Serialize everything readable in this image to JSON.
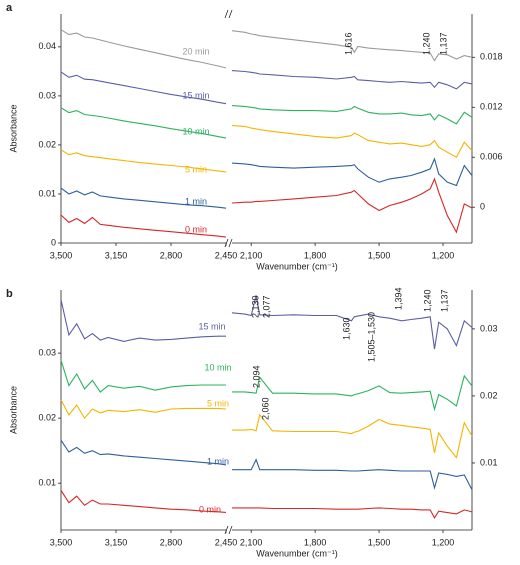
{
  "chart_data": [
    {
      "type": "line",
      "panel": "a",
      "xlabel": "Wavenumber (cm⁻¹)",
      "ylabel": "Absorbance",
      "x": [
        3500,
        3450,
        3400,
        3350,
        3300,
        3250,
        3200,
        3100,
        3000,
        2900,
        2800,
        2700,
        2600,
        2500,
        2450
      ],
      "x2": [
        2190,
        2130,
        2100,
        2077,
        2060,
        2000,
        1900,
        1800,
        1700,
        1630,
        1616,
        1600,
        1550,
        1500,
        1450,
        1394,
        1350,
        1300,
        1260,
        1240,
        1220,
        1180,
        1137,
        1100,
        1064
      ],
      "xlim": [
        3500,
        2450
      ],
      "xticks": [
        {
          "value": 3500,
          "label": "3,500"
        },
        {
          "value": 3150,
          "label": "3,150"
        },
        {
          "value": 2800,
          "label": "2,800"
        },
        {
          "value": 2450,
          "label": "2,450"
        }
      ],
      "x2lim": [
        2190,
        1064
      ],
      "x2ticks": [
        {
          "value": 2100,
          "label": "2,100"
        },
        {
          "value": 1800,
          "label": "1,800"
        },
        {
          "value": 1500,
          "label": "1,500"
        },
        {
          "value": 1200,
          "label": "1,200"
        }
      ],
      "ylim": [
        0,
        0.0467
      ],
      "yticks": [
        0,
        0.01,
        0.02,
        0.03,
        0.04
      ],
      "y2lim": [
        -0.0043,
        0.0232
      ],
      "y2ticks": [
        0,
        0.006,
        0.012,
        0.018
      ],
      "series": [
        {
          "name": "20 min",
          "color": "#9a9a9a",
          "values": [
            0.0435,
            0.0425,
            0.0428,
            0.042,
            0.0418,
            0.0414,
            0.041,
            0.0402,
            0.0395,
            0.0388,
            0.0381,
            0.0374,
            0.0368,
            0.0361,
            0.0357
          ],
          "values2": [
            0.0212,
            0.021,
            0.0208,
            0.0207,
            0.0206,
            0.0204,
            0.0201,
            0.0198,
            0.0195,
            0.0192,
            0.0186,
            0.0193,
            0.0191,
            0.019,
            0.0189,
            0.0188,
            0.0187,
            0.0186,
            0.0185,
            0.0176,
            0.0184,
            0.0183,
            0.0178,
            0.0182,
            0.018
          ]
        },
        {
          "name": "15 min",
          "color": "#5b5ea6",
          "values": [
            0.0349,
            0.0338,
            0.0342,
            0.0334,
            0.0333,
            0.033,
            0.0327,
            0.0321,
            0.0315,
            0.0309,
            0.0303,
            0.0298,
            0.0293,
            0.0287,
            0.0284
          ],
          "values2": [
            0.0164,
            0.0163,
            0.0162,
            0.0161,
            0.016,
            0.0159,
            0.0157,
            0.0156,
            0.0154,
            0.0156,
            0.0157,
            0.0153,
            0.0152,
            0.0151,
            0.015,
            0.0151,
            0.015,
            0.0149,
            0.015,
            0.0144,
            0.015,
            0.0147,
            0.0142,
            0.015,
            0.0148
          ]
        },
        {
          "name": "10 min",
          "color": "#2db35d",
          "values": [
            0.0276,
            0.0266,
            0.027,
            0.0262,
            0.026,
            0.0258,
            0.0255,
            0.0249,
            0.0244,
            0.0239,
            0.0233,
            0.0228,
            0.0223,
            0.0217,
            0.0214
          ],
          "values2": [
            0.0122,
            0.0121,
            0.012,
            0.0119,
            0.0118,
            0.0117,
            0.0116,
            0.0116,
            0.0115,
            0.0118,
            0.0121,
            0.0119,
            0.0114,
            0.0112,
            0.0112,
            0.0113,
            0.0111,
            0.011,
            0.0112,
            0.0105,
            0.0111,
            0.0106,
            0.01,
            0.0114,
            0.0108
          ]
        },
        {
          "name": "5 min",
          "color": "#f4b400",
          "values": [
            0.019,
            0.018,
            0.0184,
            0.0178,
            0.0176,
            0.0174,
            0.0172,
            0.0168,
            0.0164,
            0.0161,
            0.0158,
            0.0155,
            0.0151,
            0.0147,
            0.0145
          ],
          "values2": [
            0.0098,
            0.0097,
            0.0095,
            0.0094,
            0.0093,
            0.0091,
            0.0088,
            0.0085,
            0.0083,
            0.0086,
            0.0089,
            0.0087,
            0.008,
            0.0078,
            0.0076,
            0.0077,
            0.0075,
            0.0073,
            0.0075,
            0.008,
            0.0072,
            0.0066,
            0.006,
            0.0078,
            0.0068
          ]
        },
        {
          "name": "1 min",
          "color": "#2e5f9a",
          "values": [
            0.0112,
            0.01,
            0.0106,
            0.0098,
            0.0104,
            0.0096,
            0.0094,
            0.009,
            0.0087,
            0.0084,
            0.0081,
            0.0078,
            0.0076,
            0.0073,
            0.0071
          ],
          "values2": [
            0.0053,
            0.0052,
            0.0051,
            0.005,
            0.0049,
            0.0048,
            0.0047,
            0.0048,
            0.0049,
            0.005,
            0.0051,
            0.0046,
            0.0036,
            0.003,
            0.0034,
            0.0036,
            0.0038,
            0.0042,
            0.0046,
            0.0058,
            0.004,
            0.003,
            0.0026,
            0.005,
            0.0038
          ]
        },
        {
          "name": "0 min",
          "color": "#d62728",
          "values": [
            0.0057,
            0.0042,
            0.005,
            0.004,
            0.0052,
            0.0038,
            0.0036,
            0.0032,
            0.0029,
            0.0026,
            0.0023,
            0.002,
            0.0017,
            0.0014,
            0.0012
          ],
          "values2": [
            0.0005,
            0.0006,
            0.0006,
            0.0007,
            0.0007,
            0.0008,
            0.001,
            0.0012,
            0.0014,
            0.0018,
            0.002,
            0.0016,
            0.0004,
            -0.0004,
            0.0002,
            0.0006,
            0.001,
            0.0016,
            0.0022,
            0.0034,
            0.0018,
            -0.001,
            -0.003,
            0.0004,
            -0.0001
          ]
        }
      ],
      "annotations": [
        "1,616",
        "1,240",
        "1,137"
      ]
    },
    {
      "type": "line",
      "panel": "b",
      "xlabel": "Wavenumber (cm⁻¹)",
      "ylabel": "Absorbance",
      "x": [
        3500,
        3450,
        3400,
        3350,
        3300,
        3250,
        3200,
        3100,
        3000,
        2900,
        2800,
        2700,
        2600,
        2500,
        2450
      ],
      "x2": [
        2190,
        2130,
        2100,
        2077,
        2060,
        2000,
        1900,
        1800,
        1700,
        1630,
        1616,
        1600,
        1550,
        1500,
        1450,
        1394,
        1350,
        1300,
        1260,
        1240,
        1220,
        1180,
        1137,
        1100,
        1064
      ],
      "xlim": [
        3500,
        2450
      ],
      "xticks": [
        {
          "value": 3500,
          "label": "3,500"
        },
        {
          "value": 3150,
          "label": "3,150"
        },
        {
          "value": 2800,
          "label": "2,800"
        },
        {
          "value": 2450,
          "label": "2,450"
        }
      ],
      "x2lim": [
        2190,
        1064
      ],
      "x2ticks": [
        {
          "value": 2100,
          "label": "2,100"
        },
        {
          "value": 1800,
          "label": "1,800"
        },
        {
          "value": 1500,
          "label": "1,500"
        },
        {
          "value": 1200,
          "label": "1,200"
        }
      ],
      "ylim": [
        0.0028,
        0.0397
      ],
      "yticks": [
        0.01,
        0.02,
        0.03
      ],
      "y2lim": [
        0,
        0.0358
      ],
      "y2ticks": [
        0.01,
        0.02,
        0.03
      ],
      "series": [
        {
          "name": "15 min",
          "color": "#5b5ea6",
          "values": [
            0.0382,
            0.0328,
            0.0345,
            0.0322,
            0.033,
            0.032,
            0.0324,
            0.0318,
            0.0323,
            0.032,
            0.0321,
            0.0323,
            0.0325,
            0.0326,
            0.0326
          ],
          "values2": [
            0.0324,
            0.0322,
            0.032,
            0.035,
            0.0321,
            0.032,
            0.0321,
            0.032,
            0.032,
            0.0312,
            0.0318,
            0.0319,
            0.0322,
            0.0318,
            0.0316,
            0.0312,
            0.0314,
            0.0316,
            0.0318,
            0.027,
            0.031,
            0.03,
            0.0275,
            0.0312,
            0.0302
          ]
        },
        {
          "name": "10 min",
          "color": "#2db35d",
          "values": [
            0.0289,
            0.025,
            0.0268,
            0.0245,
            0.0258,
            0.024,
            0.025,
            0.0246,
            0.0249,
            0.0243,
            0.0248,
            0.025,
            0.0251,
            0.0251,
            0.0251
          ],
          "values2": [
            0.0206,
            0.0206,
            0.0205,
            0.0204,
            0.0228,
            0.0204,
            0.0204,
            0.0203,
            0.0203,
            0.02,
            0.0202,
            0.0203,
            0.0208,
            0.0215,
            0.0205,
            0.0204,
            0.0205,
            0.0206,
            0.0207,
            0.018,
            0.0202,
            0.0195,
            0.0185,
            0.023,
            0.0215
          ]
        },
        {
          "name": "5 min",
          "color": "#f4b400",
          "values": [
            0.0228,
            0.0205,
            0.022,
            0.02,
            0.0214,
            0.0208,
            0.0212,
            0.021,
            0.0213,
            0.0209,
            0.0214,
            0.0215,
            0.0215,
            0.0215,
            0.0214
          ],
          "values2": [
            0.0149,
            0.0149,
            0.015,
            0.0148,
            0.0172,
            0.0148,
            0.0147,
            0.0147,
            0.0147,
            0.0144,
            0.0146,
            0.0147,
            0.0155,
            0.0165,
            0.0158,
            0.0156,
            0.0154,
            0.0152,
            0.015,
            0.0115,
            0.0145,
            0.0125,
            0.0108,
            0.016,
            0.014
          ]
        },
        {
          "name": "1 min",
          "color": "#2e5f9a",
          "values": [
            0.0166,
            0.0148,
            0.0155,
            0.0146,
            0.015,
            0.0144,
            0.0145,
            0.0142,
            0.014,
            0.0138,
            0.0136,
            0.0134,
            0.0132,
            0.013,
            0.0128
          ],
          "values2": [
            0.009,
            0.009,
            0.009,
            0.0105,
            0.009,
            0.009,
            0.009,
            0.0089,
            0.0089,
            0.0088,
            0.0088,
            0.0088,
            0.0089,
            0.009,
            0.0089,
            0.0088,
            0.0088,
            0.0088,
            0.0088,
            0.0063,
            0.0085,
            0.0083,
            0.008,
            0.0082,
            0.006
          ]
        },
        {
          "name": "0 min",
          "color": "#d62728",
          "values": [
            0.0089,
            0.007,
            0.008,
            0.0066,
            0.0074,
            0.0068,
            0.0068,
            0.0066,
            0.0064,
            0.0062,
            0.006,
            0.0059,
            0.0057,
            0.0056,
            0.0055
          ],
          "values2": [
            0.0033,
            0.0033,
            0.0033,
            0.0033,
            0.0033,
            0.0032,
            0.0032,
            0.0032,
            0.0031,
            0.0031,
            0.0031,
            0.0031,
            0.0032,
            0.0033,
            0.0032,
            0.0031,
            0.0031,
            0.003,
            0.003,
            0.0018,
            0.0028,
            0.0026,
            0.0024,
            0.003,
            0.0027
          ]
        }
      ],
      "annotations": [
        "2,130",
        "2,077",
        "1,630",
        "1,505–1,530",
        "1,394",
        "1,240",
        "1,137",
        "2,094",
        "2,060"
      ]
    }
  ]
}
